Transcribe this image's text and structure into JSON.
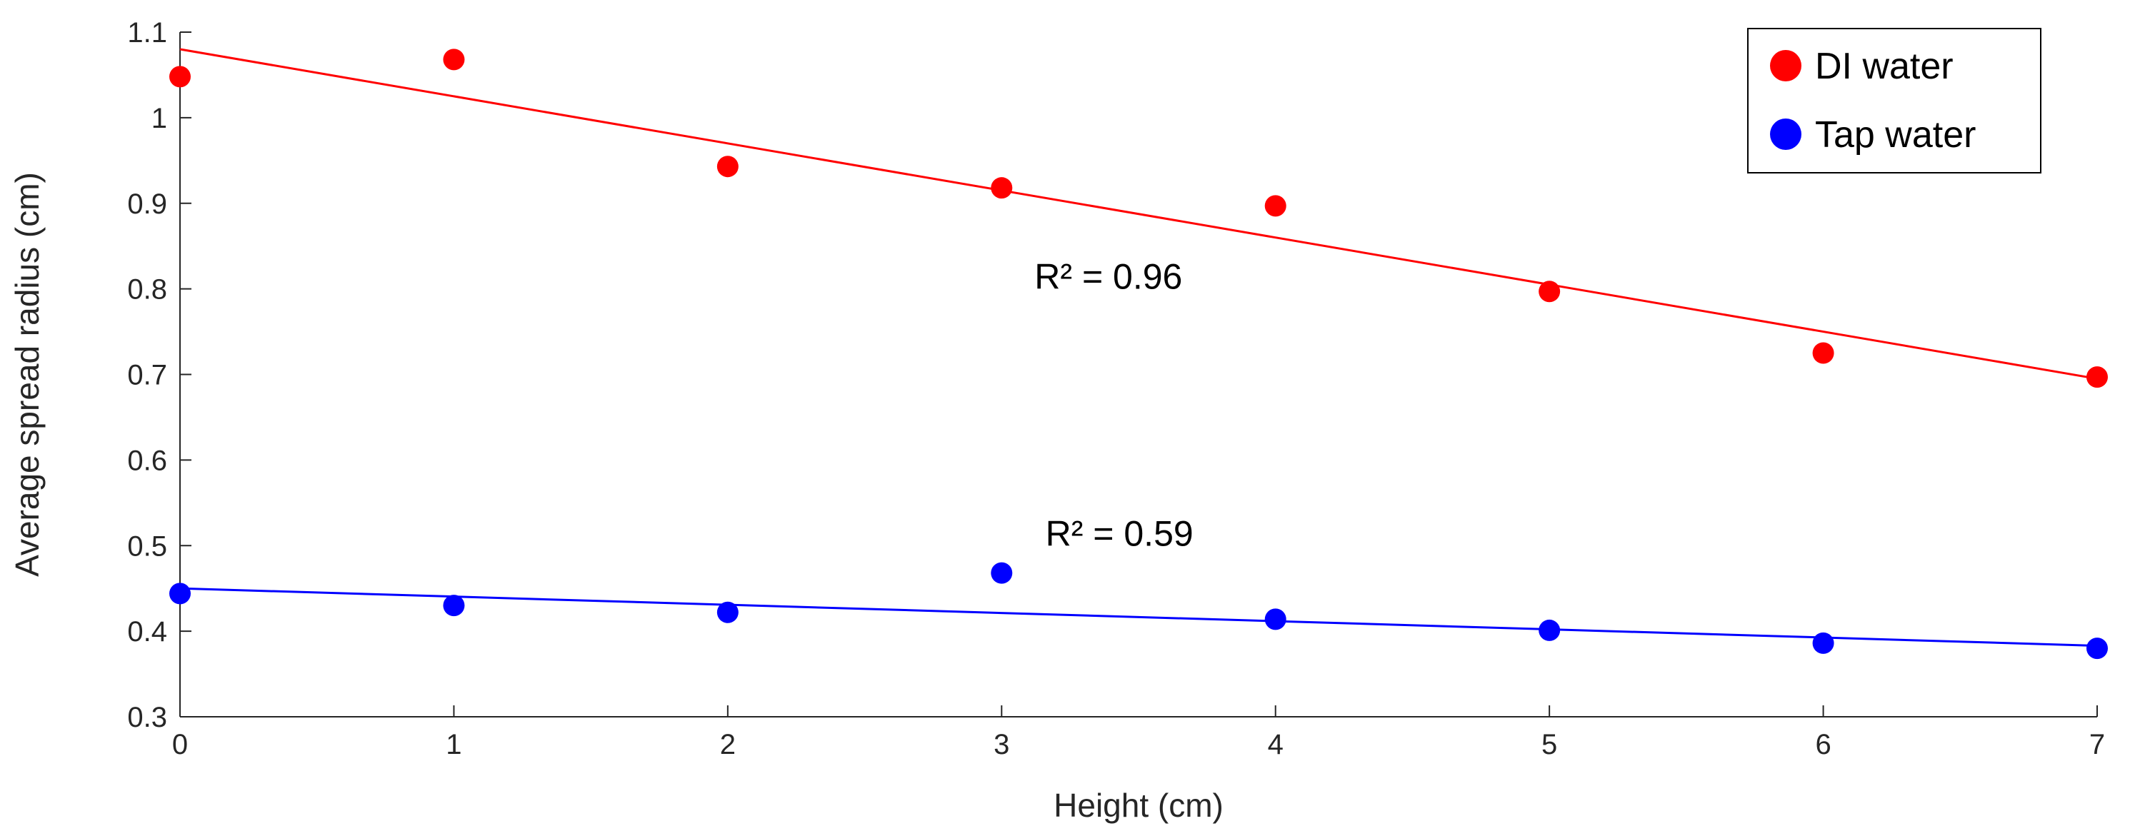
{
  "chart_data": {
    "type": "scatter",
    "title": "",
    "xlabel": "Height (cm)",
    "ylabel": "Average spread radius (cm)",
    "xlim": [
      0,
      7
    ],
    "ylim": [
      0.3,
      1.1
    ],
    "xticks": [
      0,
      1,
      2,
      3,
      4,
      5,
      6,
      7
    ],
    "xtick_labels": [
      "0",
      "1",
      "2",
      "3",
      "4",
      "5",
      "6",
      "7"
    ],
    "yticks": [
      0.3,
      0.4,
      0.5,
      0.6,
      0.7,
      0.8,
      0.9,
      1.0,
      1.1
    ],
    "ytick_labels": [
      "0.3",
      "0.4",
      "0.5",
      "0.6",
      "0.7",
      "0.8",
      "0.9",
      "1",
      "1.1"
    ],
    "grid": false,
    "legend_position": "top-right",
    "series": [
      {
        "name": "DI water",
        "color": "#ff0000",
        "x": [
          0,
          1,
          2,
          3,
          4,
          5,
          6,
          7
        ],
        "y": [
          1.048,
          1.068,
          0.943,
          0.918,
          0.897,
          0.797,
          0.725,
          0.697
        ],
        "fit": {
          "x": [
            0,
            7
          ],
          "y": [
            1.08,
            0.695
          ]
        }
      },
      {
        "name": "Tap water",
        "color": "#0000ff",
        "x": [
          0,
          1,
          2,
          3,
          4,
          5,
          6,
          7
        ],
        "y": [
          0.444,
          0.43,
          0.422,
          0.468,
          0.414,
          0.401,
          0.386,
          0.38
        ],
        "fit": {
          "x": [
            0,
            7
          ],
          "y": [
            0.45,
            0.383
          ]
        }
      }
    ],
    "annotations": [
      {
        "text": "R² = 0.96",
        "x": 3.12,
        "y": 0.8
      },
      {
        "text": "R² = 0.59",
        "x": 3.16,
        "y": 0.5
      }
    ]
  }
}
